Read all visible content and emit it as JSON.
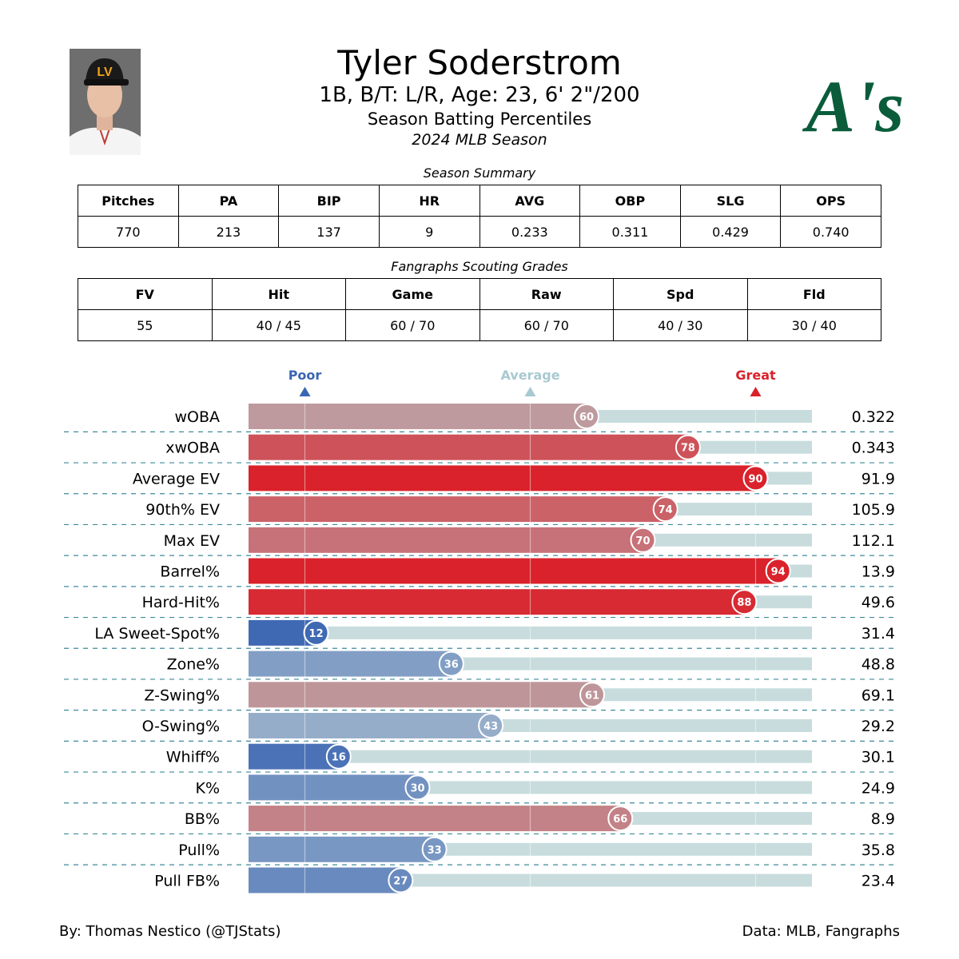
{
  "header": {
    "name": "Tyler Soderstrom",
    "info": "1B, B/T: L/R, Age: 23, 6' 2\"/200",
    "subtitle": "Season Batting Percentiles",
    "season": "2024 MLB Season",
    "logo_text": "A's",
    "cap_logo_text": "LV"
  },
  "summary": {
    "caption": "Season Summary",
    "headers": [
      "Pitches",
      "PA",
      "BIP",
      "HR",
      "AVG",
      "OBP",
      "SLG",
      "OPS"
    ],
    "values": [
      "770",
      "213",
      "137",
      "9",
      "0.233",
      "0.311",
      "0.429",
      "0.740"
    ]
  },
  "grades": {
    "caption": "Fangraphs Scouting Grades",
    "headers": [
      "FV",
      "Hit",
      "Game",
      "Raw",
      "Spd",
      "Fld"
    ],
    "values": [
      "55",
      "40 / 45",
      "60 / 70",
      "60 / 70",
      "40 / 30",
      "30 / 40"
    ]
  },
  "chart_data": {
    "type": "bar",
    "orientation": "horizontal",
    "xlim": [
      0,
      100
    ],
    "reference_markers": [
      {
        "label": "Poor",
        "value": 10,
        "color": "#3a65b3"
      },
      {
        "label": "Average",
        "value": 50,
        "color": "#a9c9d1"
      },
      {
        "label": "Great",
        "value": 90,
        "color": "#d9222b"
      }
    ],
    "categories": [
      "wOBA",
      "xwOBA",
      "Average EV",
      "90th% EV",
      "Max EV",
      "Barrel%",
      "Hard-Hit%",
      "LA Sweet-Spot%",
      "Zone%",
      "Z-Swing%",
      "O-Swing%",
      "Whiff%",
      "K%",
      "BB%",
      "Pull%",
      "Pull FB%"
    ],
    "percentiles": [
      60,
      78,
      90,
      74,
      70,
      94,
      88,
      12,
      36,
      61,
      43,
      16,
      30,
      66,
      33,
      27
    ],
    "stat_values": [
      "0.322",
      "0.343",
      "91.9",
      "105.9",
      "112.1",
      "13.9",
      "49.6",
      "31.4",
      "48.8",
      "69.1",
      "29.2",
      "30.1",
      "24.9",
      "8.9",
      "35.8",
      "23.4"
    ]
  },
  "footer": {
    "credit": "By: Thomas Nestico (@TJStats)",
    "source": "Data: MLB, Fangraphs"
  }
}
